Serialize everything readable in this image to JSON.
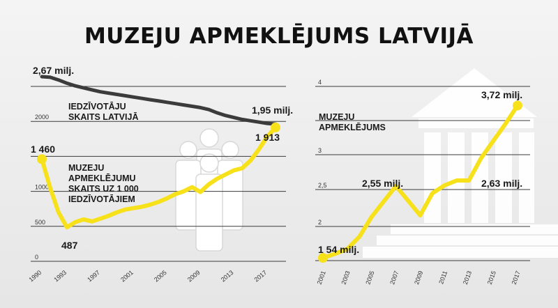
{
  "title": "MUZEJU APMEKLĒJUMS LATVIJĀ",
  "colors": {
    "yellow": "#f7e11b",
    "dark": "#3b3b3b",
    "grid": "#3a3a3a",
    "text": "#111111"
  },
  "icons": [
    "people-group-icon",
    "museum-building-icon"
  ],
  "chart_data": [
    {
      "type": "line",
      "x": [
        1990,
        1991,
        1992,
        1993,
        1994,
        1995,
        1996,
        1997,
        1998,
        1999,
        2000,
        2001,
        2002,
        2003,
        2004,
        2005,
        2006,
        2007,
        2008,
        2009,
        2010,
        2011,
        2012,
        2013,
        2014,
        2015,
        2016,
        2017,
        2018
      ],
      "xticks": [
        "1990",
        "1993",
        "1997",
        "2001",
        "2005",
        "2009",
        "2013",
        "2017"
      ],
      "yticks": [
        "0",
        "500",
        "1000",
        "2000"
      ],
      "ylim": [
        0,
        2500
      ],
      "series": [
        {
          "name": "MUZEJU APMEKLĒJUMU SKAITS UZ 1 000 IEDZĪVOTĀJIEM",
          "color": "#f7e11b",
          "values": [
            1460,
            1050,
            700,
            487,
            560,
            600,
            570,
            610,
            650,
            700,
            740,
            760,
            780,
            810,
            850,
            900,
            960,
            1000,
            1060,
            990,
            1100,
            1180,
            1240,
            1300,
            1330,
            1440,
            1600,
            1780,
            1913
          ]
        },
        {
          "name": "IEDZĪVOTĀJU SKAITS LATVIJĀ",
          "color": "#3b3b3b",
          "unit": "milj.",
          "values": [
            2.67,
            2.66,
            2.62,
            2.57,
            2.53,
            2.5,
            2.47,
            2.44,
            2.42,
            2.4,
            2.38,
            2.36,
            2.34,
            2.32,
            2.3,
            2.28,
            2.26,
            2.24,
            2.22,
            2.2,
            2.17,
            2.12,
            2.08,
            2.05,
            2.02,
            2.0,
            1.98,
            1.96,
            1.95
          ]
        }
      ],
      "annotations": [
        {
          "text": "2,67 milj.",
          "series": 1,
          "point": 0
        },
        {
          "text": "1,95 milj.",
          "series": 1,
          "point": 28
        },
        {
          "text": "1 460",
          "series": 0,
          "point": 0
        },
        {
          "text": "487",
          "series": 0,
          "point": 3
        },
        {
          "text": "1 913",
          "series": 0,
          "point": 28
        }
      ],
      "series_labels": {
        "population": [
          "IEDZĪVOTĀJU",
          "SKAITS LATVIJĀ"
        ],
        "per_capita": [
          "MUZEJU",
          "APMEKLĒJUMU",
          "SKAITS UZ 1 000",
          "IEDZĪVOTĀJIEM"
        ]
      }
    },
    {
      "type": "line",
      "x": [
        2001,
        2002,
        2003,
        2004,
        2005,
        2006,
        2007,
        2008,
        2009,
        2010,
        2011,
        2012,
        2013,
        2014,
        2015,
        2016,
        2017
      ],
      "xticks": [
        "2001",
        "2003",
        "2005",
        "2007",
        "2009",
        "2011",
        "2013",
        "2015",
        "2017"
      ],
      "yticks": [
        "2",
        "2,5",
        "3",
        "4"
      ],
      "series": [
        {
          "name": "MUZEJU APMEKLĒJUMS",
          "color": "#f7e11b",
          "unit": "milj.",
          "values": [
            1.54,
            1.6,
            1.67,
            1.85,
            2.13,
            2.34,
            2.55,
            2.35,
            2.15,
            2.45,
            2.56,
            2.63,
            2.63,
            2.95,
            3.2,
            3.45,
            3.72
          ]
        }
      ],
      "annotations": [
        {
          "text": "1 54 milj.",
          "point": 0
        },
        {
          "text": "2,55 milj.",
          "point": 6
        },
        {
          "text": "2,63 milj.",
          "point": 12
        },
        {
          "text": "3,72 milj.",
          "point": 16
        }
      ],
      "series_labels": {
        "visits": [
          "MUZEJU",
          "APMEKLĒJUMS"
        ]
      }
    }
  ]
}
